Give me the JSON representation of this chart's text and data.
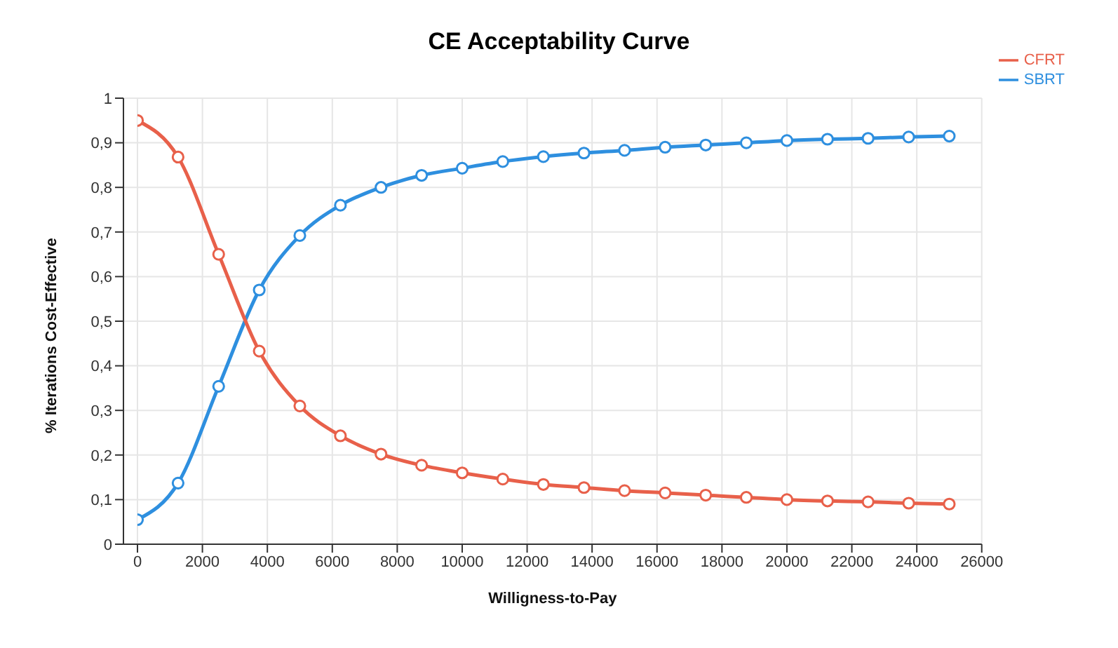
{
  "chart_data": {
    "type": "line",
    "title": "CE Acceptability Curve",
    "xlabel": "Willigness-to-Pay",
    "ylabel": "% Iterations Cost-Effective",
    "x": [
      0,
      1250,
      2500,
      3750,
      5000,
      6250,
      7500,
      8750,
      10000,
      11250,
      12500,
      13750,
      15000,
      16250,
      17500,
      18750,
      20000,
      21250,
      22500,
      23750,
      25000
    ],
    "series": [
      {
        "name": "SBRT",
        "color": "#2e8fdf",
        "values": [
          0.055,
          0.137,
          0.354,
          0.57,
          0.692,
          0.76,
          0.8,
          0.827,
          0.843,
          0.858,
          0.869,
          0.877,
          0.883,
          0.89,
          0.895,
          0.9,
          0.905,
          0.908,
          0.91,
          0.913,
          0.915
        ]
      },
      {
        "name": "CFRT",
        "color": "#e8604a",
        "values": [
          0.95,
          0.868,
          0.65,
          0.433,
          0.31,
          0.243,
          0.202,
          0.177,
          0.16,
          0.146,
          0.134,
          0.127,
          0.12,
          0.115,
          0.11,
          0.105,
          0.1,
          0.097,
          0.095,
          0.092,
          0.09
        ]
      }
    ],
    "xlim": [
      0,
      26000
    ],
    "xticks": [
      0,
      2000,
      4000,
      6000,
      8000,
      10000,
      12000,
      14000,
      16000,
      18000,
      20000,
      22000,
      24000,
      26000
    ],
    "ylim": [
      0,
      1
    ],
    "yticks": [
      0,
      {
        "value": 0.1,
        "label": "0,1"
      },
      {
        "value": 0.2,
        "label": "0,2"
      },
      {
        "value": 0.3,
        "label": "0,3"
      },
      {
        "value": 0.4,
        "label": "0,4"
      },
      {
        "value": 0.5,
        "label": "0,5"
      },
      {
        "value": 0.6,
        "label": "0,6"
      },
      {
        "value": 0.7,
        "label": "0,7"
      },
      {
        "value": 0.8,
        "label": "0,8"
      },
      {
        "value": 0.9,
        "label": "0,9"
      },
      1
    ],
    "grid": true,
    "legend": "top right",
    "marker": "circle",
    "line_style": "solid"
  }
}
